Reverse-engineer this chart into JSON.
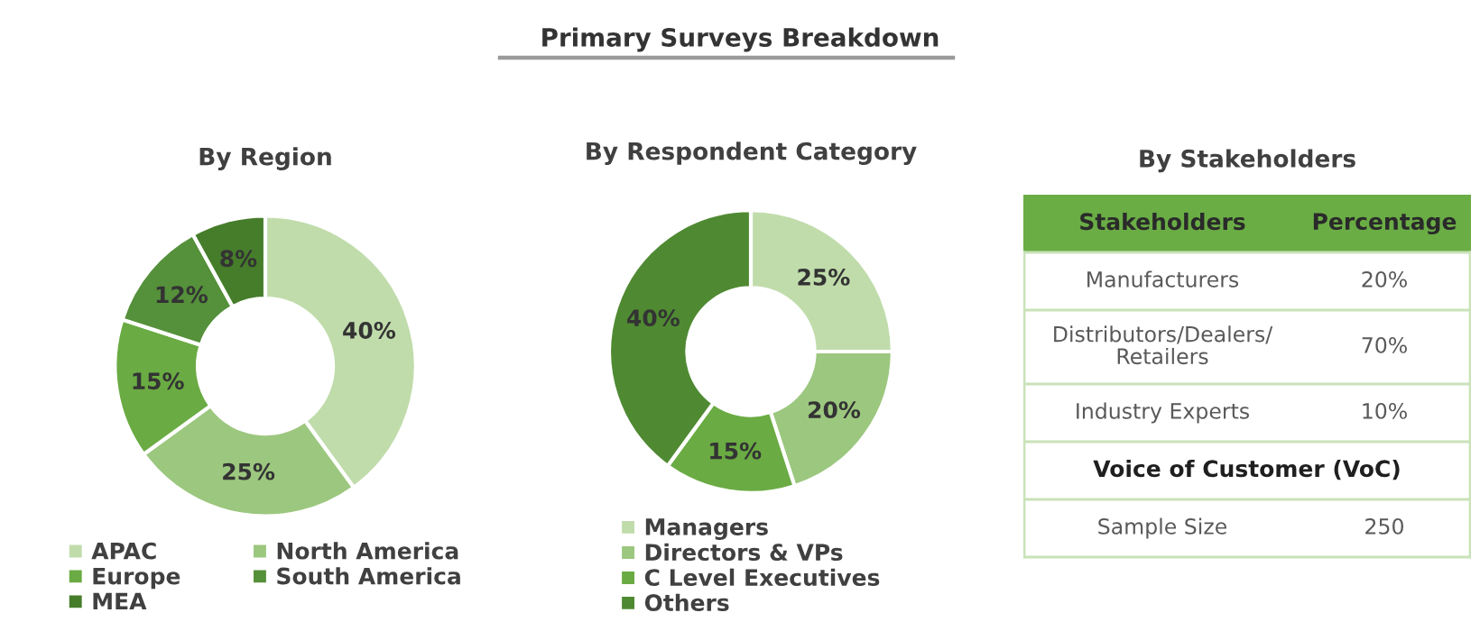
{
  "chart_data": [
    {
      "type": "other",
      "title": "Primary Surveys Breakdown"
    },
    {
      "type": "donut",
      "title": "By Region",
      "categories": [
        "APAC",
        "North America",
        "Europe",
        "South America",
        "MEA"
      ],
      "values": [
        40,
        25,
        15,
        12,
        8
      ],
      "value_labels": [
        "40%",
        "25%",
        "15%",
        "12%",
        "8%"
      ],
      "colors": [
        "#c0dcab",
        "#9cc77f",
        "#6aab43",
        "#55903a",
        "#467d2b"
      ],
      "legend": "bottom"
    },
    {
      "type": "donut",
      "title": "By Respondent Category",
      "categories": [
        "Managers",
        "Directors & VPs",
        "C Level Executives",
        "Others"
      ],
      "values": [
        25,
        20,
        15,
        40
      ],
      "value_labels": [
        "25%",
        "20%",
        "15%",
        "40%"
      ],
      "colors": [
        "#c0dcab",
        "#9cc77f",
        "#6aab43",
        "#4f8a32"
      ],
      "legend": "bottom"
    },
    {
      "type": "other",
      "title": "By Stakeholders",
      "annotations": [
        "Stakeholders",
        "Percentage",
        "Manufacturers",
        "20%",
        "Distributors/Dealers/\nRetailers",
        "70%",
        "Industry Experts",
        "10%",
        "Voice of Customer (VoC)",
        "Sample Size",
        "250"
      ]
    }
  ]
}
